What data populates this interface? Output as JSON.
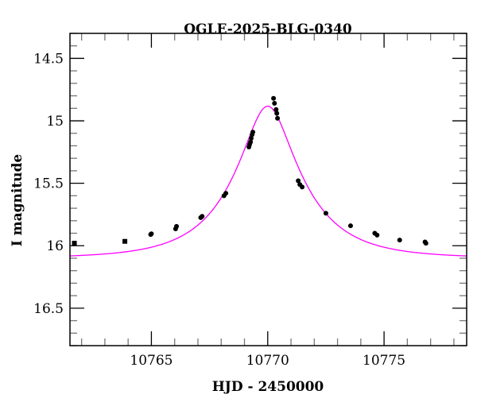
{
  "chart_data": {
    "type": "scatter",
    "title": "OGLE-2025-BLG-0340",
    "xlabel": "HJD - 2450000",
    "ylabel": "I magnitude",
    "xlim": [
      10761.5,
      10778.55
    ],
    "ylim": [
      16.8,
      14.3
    ],
    "y_inverted": true,
    "xticks": [
      10765,
      10770,
      10775
    ],
    "xtick_labels": [
      "10765",
      "10770",
      "10775"
    ],
    "yticks": [
      14.5,
      15,
      15.5,
      16,
      16.5
    ],
    "ytick_labels": [
      "14.5",
      "15",
      "15.5",
      "16",
      "16.5"
    ],
    "grid": false,
    "colors": {
      "data": "#000000",
      "model": "#ff00ff"
    },
    "series": [
      {
        "name": "data",
        "x": [
          10761.69,
          10763.86,
          10764.97,
          10765.0,
          10766.04,
          10766.08,
          10767.12,
          10767.18,
          10768.12,
          10768.2,
          10769.19,
          10769.22,
          10769.26,
          10769.29,
          10769.33,
          10769.36,
          10770.25,
          10770.29,
          10770.36,
          10770.39,
          10770.42,
          10771.31,
          10771.38,
          10771.48,
          10772.5,
          10773.56,
          10774.6,
          10774.7,
          10775.67,
          10776.76,
          10776.8
        ],
        "y": [
          15.98,
          15.965,
          15.91,
          15.905,
          15.865,
          15.845,
          15.775,
          15.765,
          15.6,
          15.58,
          15.21,
          15.19,
          15.17,
          15.14,
          15.11,
          15.09,
          14.82,
          14.86,
          14.91,
          14.94,
          14.98,
          15.48,
          15.51,
          15.53,
          15.74,
          15.84,
          15.9,
          15.915,
          15.955,
          15.97,
          15.98
        ]
      },
      {
        "name": "model",
        "kind": "pspl",
        "t0": 10770.0,
        "u0": 0.34,
        "tE": 2.86,
        "baseline_mag": 16.1
      }
    ]
  }
}
